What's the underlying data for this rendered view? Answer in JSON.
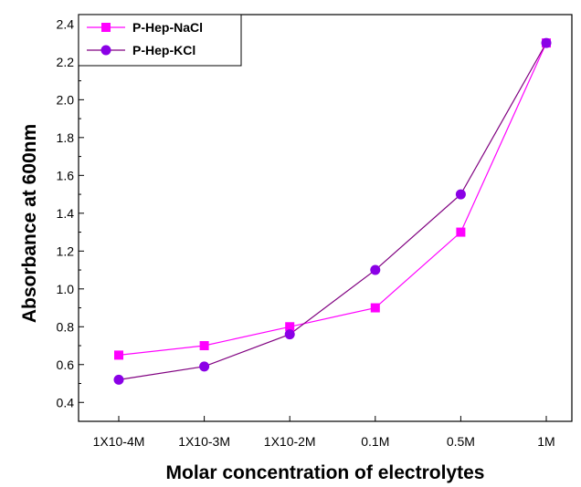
{
  "chart_data": {
    "type": "line",
    "title": "",
    "xlabel": "Molar concentration of electrolytes",
    "ylabel": "Absorbance at 600nm",
    "categories": [
      "1X10-4M",
      "1X10-3M",
      "1X10-2M",
      "0.1M",
      "0.5M",
      "1M"
    ],
    "ylim": [
      0.3,
      2.45
    ],
    "yticks": [
      "0.4",
      "0.6",
      "0.8",
      "1.0",
      "1.2",
      "1.4",
      "1.6",
      "1.8",
      "2.0",
      "2.2",
      "2.4"
    ],
    "grid": false,
    "legend_position": "top-left",
    "series": [
      {
        "name": "P-Hep-NaCl",
        "marker": "square",
        "color": "#ff00ff",
        "values": [
          0.65,
          0.7,
          0.8,
          0.9,
          1.3,
          2.3
        ]
      },
      {
        "name": "P-Hep-KCl",
        "marker": "circle",
        "color": "#800080",
        "marker_color": "#8a00e6",
        "values": [
          0.52,
          0.59,
          0.76,
          1.1,
          1.5,
          2.3
        ]
      }
    ]
  }
}
